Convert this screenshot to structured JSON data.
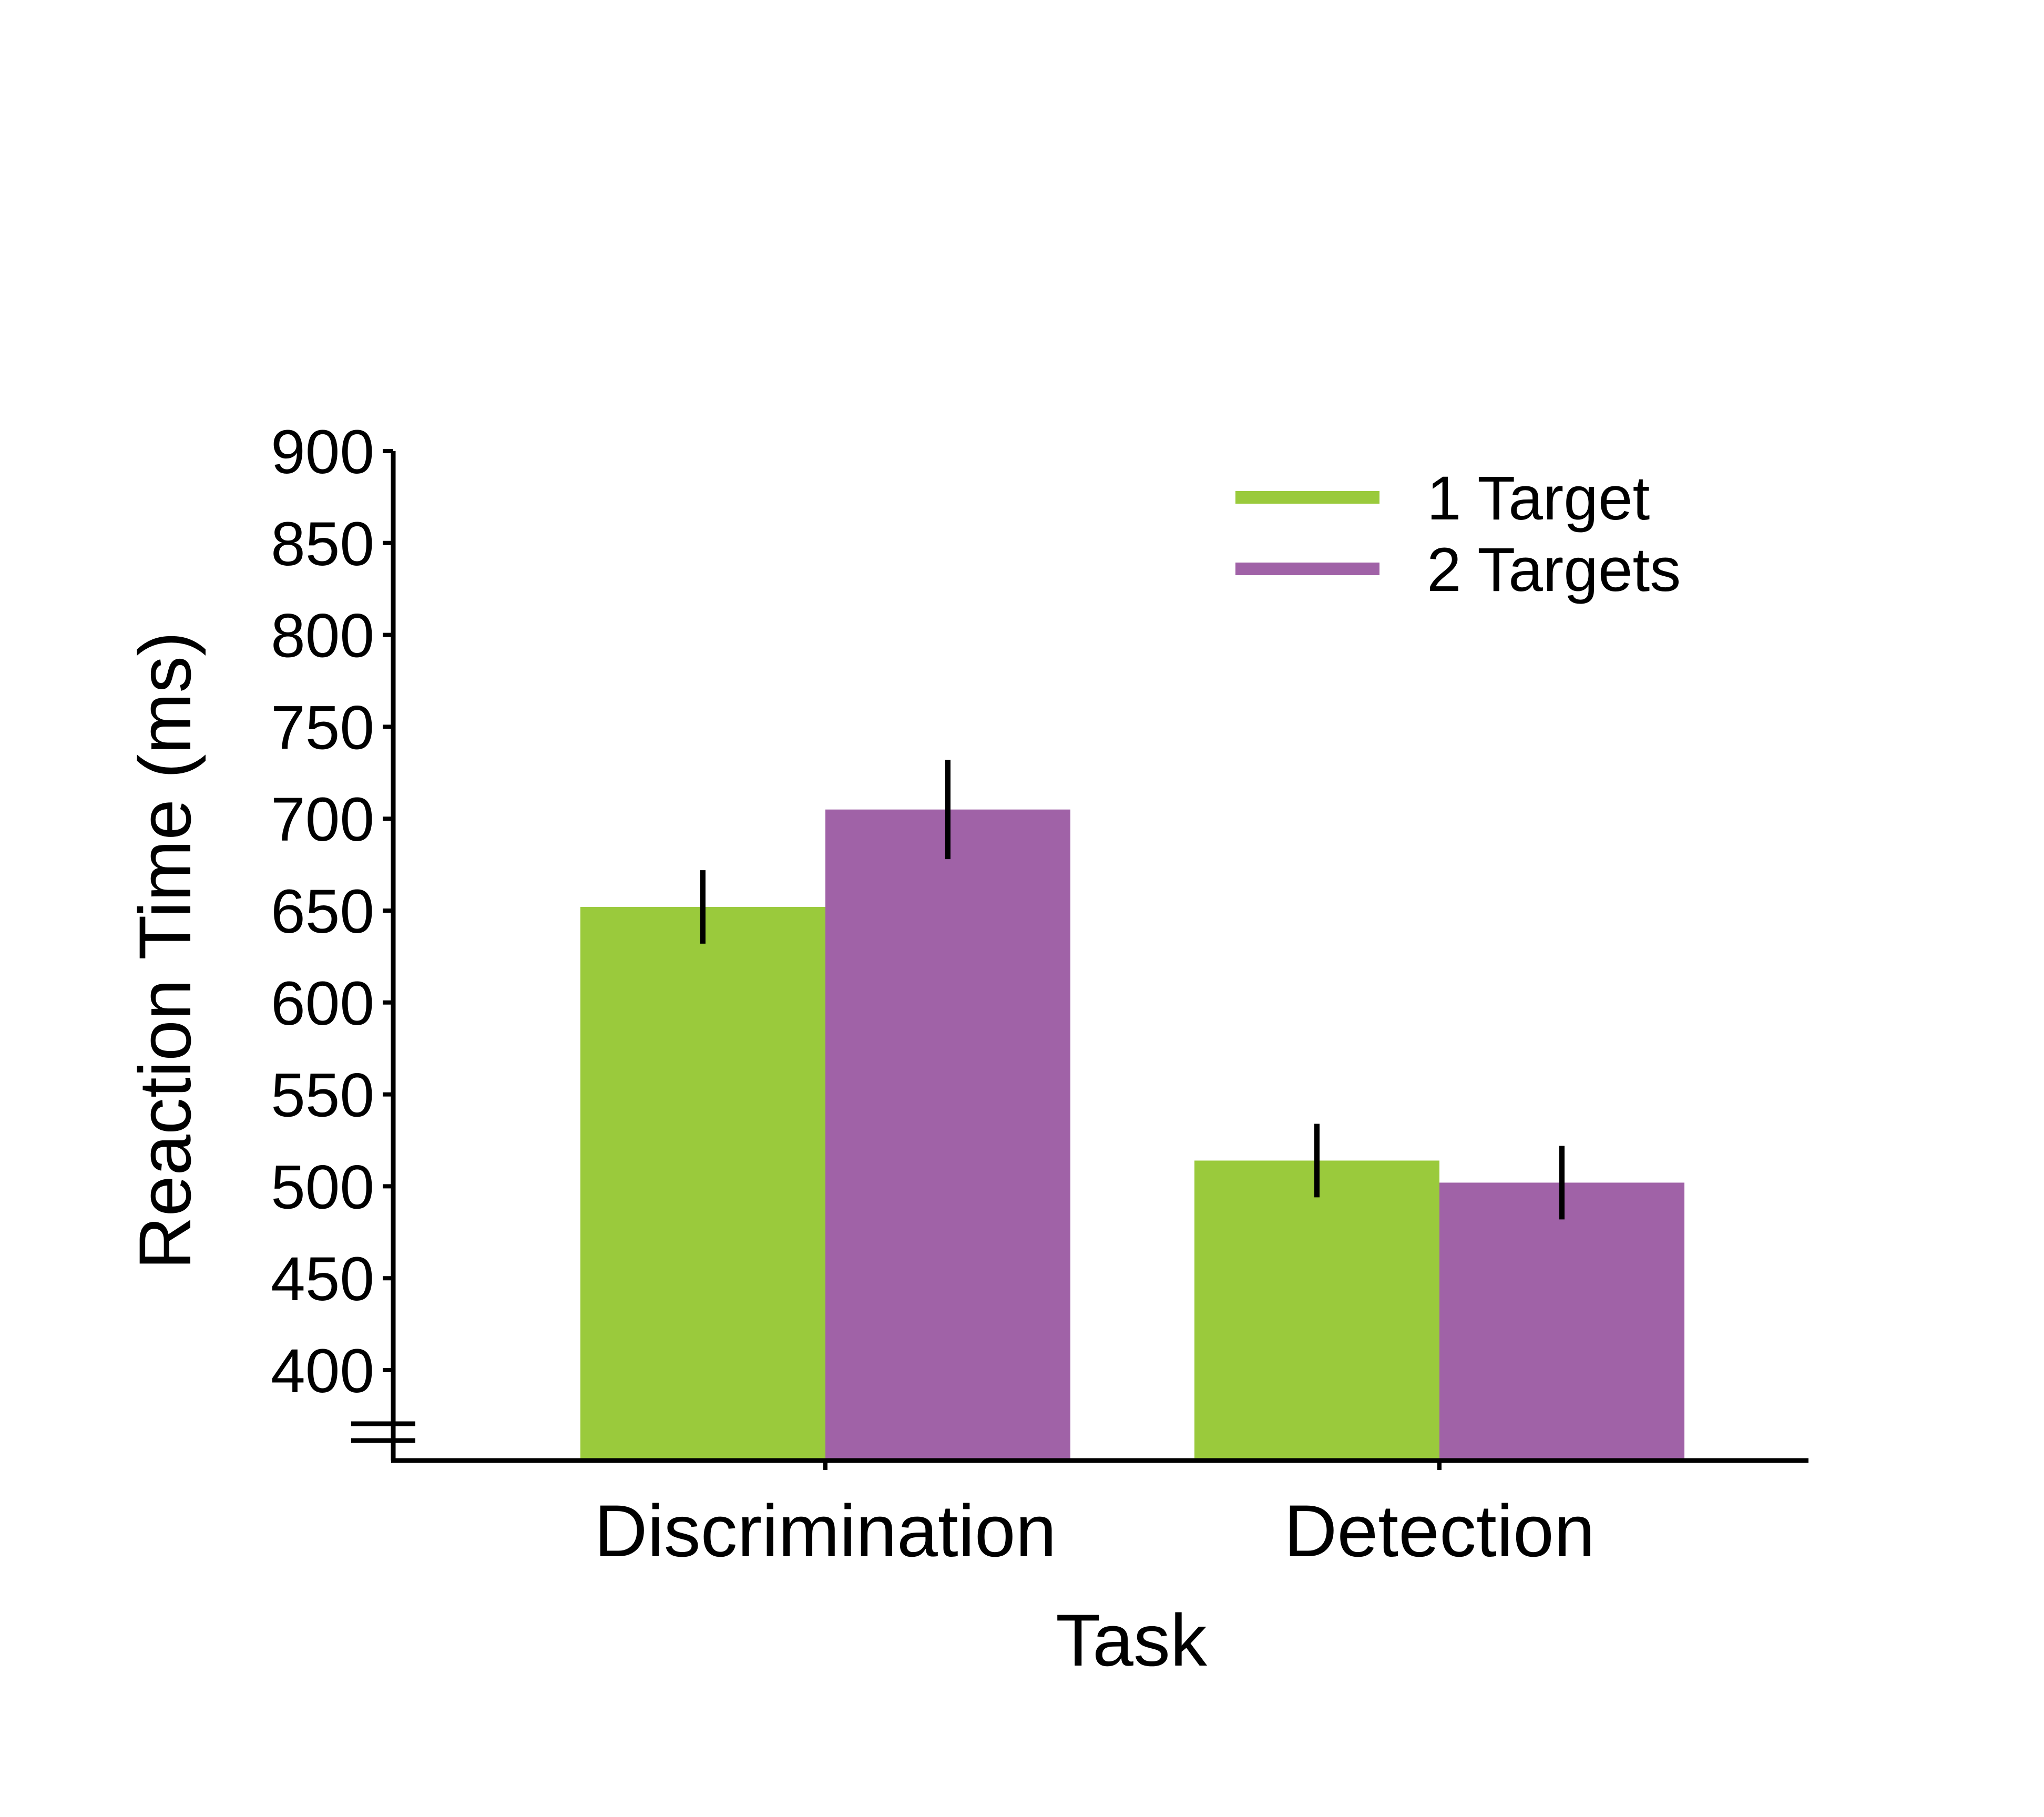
{
  "chart_data": {
    "type": "bar",
    "xlabel": "Task",
    "ylabel": "Reaction Time (ms)",
    "categories": [
      "Discrimination",
      "Detection"
    ],
    "ylim": [
      350,
      900
    ],
    "yticks": [
      400,
      450,
      500,
      550,
      600,
      650,
      700,
      750,
      800,
      850,
      900
    ],
    "axis_break": true,
    "grid": false,
    "legend_position": "top-right",
    "series": [
      {
        "name": "1 Target",
        "color": "#9aca3c",
        "values": [
          652,
          514
        ],
        "error": [
          20,
          20
        ]
      },
      {
        "name": "2 Targets",
        "color": "#a062a7",
        "values": [
          705,
          502
        ],
        "error": [
          27,
          20
        ]
      }
    ]
  }
}
